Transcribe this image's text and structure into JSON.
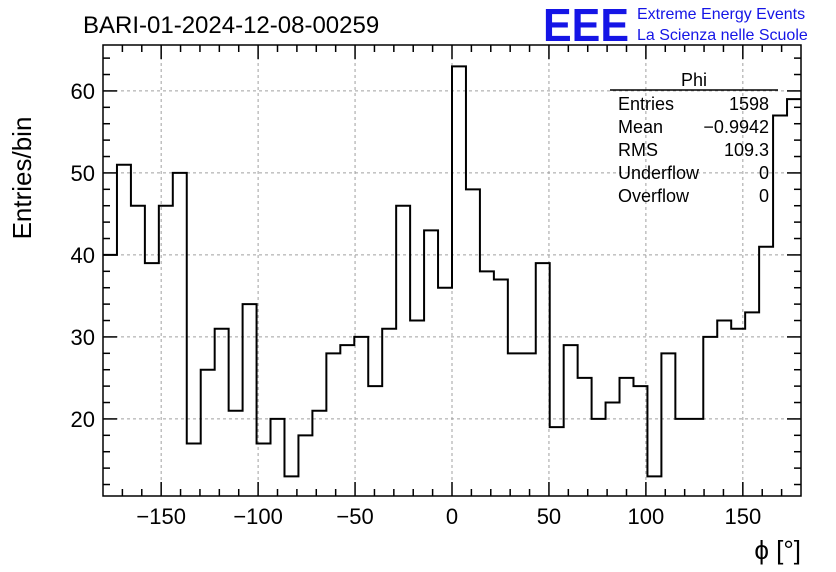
{
  "chart_data": {
    "type": "histogram",
    "title": "BARI-01-2024-12-08-00259",
    "xlabel": "ϕ [°]",
    "ylabel": "Entries/bin",
    "xlim": [
      -180,
      180
    ],
    "ylim": [
      10.6,
      65.6
    ],
    "bin_edges_start": -180,
    "bin_width": 7.2,
    "values": [
      40,
      51,
      46,
      39,
      46,
      50,
      17,
      26,
      31,
      21,
      34,
      17,
      20,
      13,
      18,
      21,
      28,
      29,
      30,
      24,
      31,
      46,
      32,
      43,
      36,
      63,
      48,
      38,
      37,
      28,
      28,
      39,
      19,
      29,
      25,
      20,
      22,
      25,
      24,
      13,
      28,
      20,
      20,
      30,
      32,
      31,
      33,
      41,
      57,
      59
    ],
    "x_ticks": [
      {
        "value": -150,
        "label": "−150"
      },
      {
        "value": -100,
        "label": "−100"
      },
      {
        "value": -50,
        "label": "−50"
      },
      {
        "value": 0,
        "label": "0"
      },
      {
        "value": 50,
        "label": "50"
      },
      {
        "value": 100,
        "label": "100"
      },
      {
        "value": 150,
        "label": "150"
      }
    ],
    "y_ticks": [
      {
        "value": 20,
        "label": "20"
      },
      {
        "value": 30,
        "label": "30"
      },
      {
        "value": 40,
        "label": "40"
      },
      {
        "value": 50,
        "label": "50"
      },
      {
        "value": 60,
        "label": "60"
      }
    ],
    "grid": true,
    "line_color": "#000000",
    "grid_color": "#a0a0a0"
  },
  "stats_box": {
    "title": "Phi",
    "rows": [
      {
        "label": "Entries",
        "value": "1598"
      },
      {
        "label": "Mean",
        "value": "−0.9942"
      },
      {
        "label": "RMS",
        "value": "109.3"
      },
      {
        "label": "Underflow",
        "value": "0"
      },
      {
        "label": "Overflow",
        "value": "0"
      }
    ]
  },
  "logo": {
    "acronym": "EEE",
    "line1": "Extreme Energy Events",
    "line2": "La Scienza nelle Scuole",
    "color": "#1515e6"
  }
}
